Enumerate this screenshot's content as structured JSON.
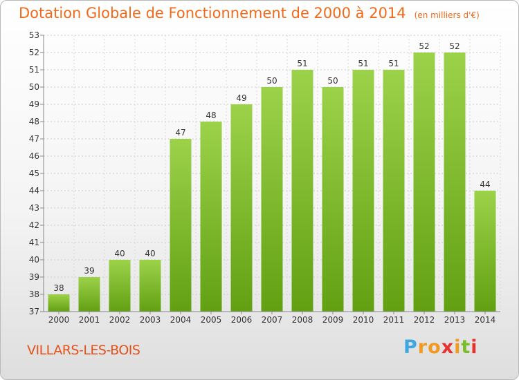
{
  "chart_data": {
    "type": "bar",
    "title": "Dotation Globale de Fonctionnement de 2000 à 2014",
    "subtitle": "(en milliers d'€)",
    "categories": [
      "2000",
      "2001",
      "2002",
      "2003",
      "2004",
      "2005",
      "2006",
      "2007",
      "2008",
      "2009",
      "2010",
      "2011",
      "2012",
      "2013",
      "2014"
    ],
    "values": [
      38,
      39,
      40,
      40,
      47,
      48,
      49,
      50,
      51,
      50,
      51,
      51,
      52,
      52,
      44
    ],
    "ylim": [
      37,
      53
    ],
    "yticks": [
      37,
      38,
      39,
      40,
      41,
      42,
      43,
      44,
      45,
      46,
      47,
      48,
      49,
      50,
      51,
      52,
      53
    ],
    "grid": true,
    "bar_color": "#7cbc2a",
    "legend": "none"
  },
  "commune": "VILLARS-LES-BOIS",
  "logo": {
    "letters": [
      "P",
      "r",
      "o",
      "x",
      "i",
      "t",
      "i"
    ],
    "colors": [
      "#3fa7e0",
      "#f29a1f",
      "#f29a1f",
      "#e8312f",
      "#f29a1f",
      "#7cbc2a",
      "#e8312f"
    ]
  },
  "colors": {
    "accent": "#ef6a1a",
    "grid": "#cccccc"
  }
}
